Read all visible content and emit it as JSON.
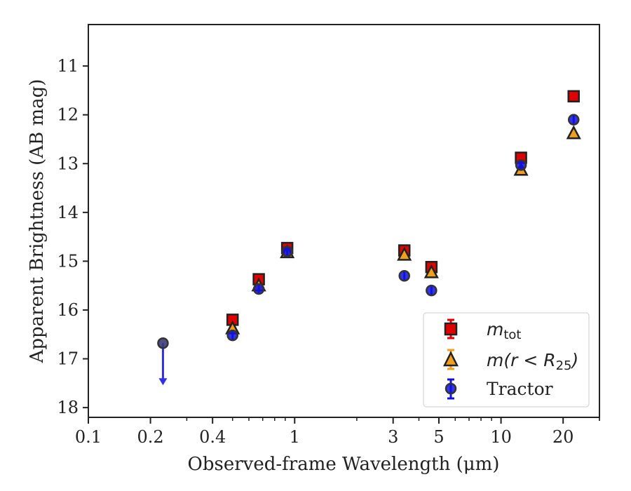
{
  "chart_data": {
    "type": "scatter",
    "xlabel": "Observed-frame Wavelength (μm)",
    "ylabel": "Apparent Brightness (AB mag)",
    "xscale": "log",
    "xlim": [
      0.1,
      30
    ],
    "ylim": [
      18.2,
      10.15
    ],
    "y_inverted": true,
    "xticks": [
      0.1,
      0.2,
      0.4,
      1,
      3,
      5,
      10,
      20
    ],
    "xtick_labels": [
      "0.1",
      "0.2",
      "0.4",
      "1",
      "3",
      "5",
      "10",
      "20"
    ],
    "yticks": [
      11,
      12,
      13,
      14,
      15,
      16,
      17,
      18
    ],
    "ytick_labels": [
      "11",
      "12",
      "13",
      "14",
      "15",
      "16",
      "17",
      "18"
    ],
    "legend_position": "lower-right",
    "series": [
      {
        "name": "m_tot",
        "marker": "square",
        "color": "#e00000",
        "points": [
          {
            "x": 0.5,
            "y": 16.2
          },
          {
            "x": 0.67,
            "y": 15.37
          },
          {
            "x": 0.92,
            "y": 14.73
          },
          {
            "x": 3.4,
            "y": 14.78
          },
          {
            "x": 4.6,
            "y": 15.12
          },
          {
            "x": 12.5,
            "y": 12.88
          },
          {
            "x": 22.5,
            "y": 11.62
          }
        ]
      },
      {
        "name": "m(r < R_25)",
        "marker": "triangle",
        "color": "#f0a020",
        "points": [
          {
            "x": 0.5,
            "y": 16.38
          },
          {
            "x": 0.67,
            "y": 15.5
          },
          {
            "x": 0.92,
            "y": 14.82
          },
          {
            "x": 3.4,
            "y": 14.87
          },
          {
            "x": 4.6,
            "y": 15.23
          },
          {
            "x": 12.5,
            "y": 13.13
          },
          {
            "x": 22.5,
            "y": 12.38
          }
        ]
      },
      {
        "name": "Tractor",
        "marker": "circle",
        "color": "#1010e0",
        "points": [
          {
            "x": 0.23,
            "y": 16.68,
            "upper_limit": true
          },
          {
            "x": 0.5,
            "y": 16.52
          },
          {
            "x": 0.67,
            "y": 15.57
          },
          {
            "x": 0.92,
            "y": 14.8
          },
          {
            "x": 3.4,
            "y": 15.3
          },
          {
            "x": 4.6,
            "y": 15.6
          },
          {
            "x": 12.5,
            "y": 13.03
          },
          {
            "x": 22.5,
            "y": 12.1
          }
        ]
      }
    ],
    "legend": {
      "tot_main": "m",
      "tot_sub": "tot",
      "r25_main": "m(r < R",
      "r25_sub": "25",
      "r25_close": ")",
      "tractor": "Tractor"
    }
  }
}
